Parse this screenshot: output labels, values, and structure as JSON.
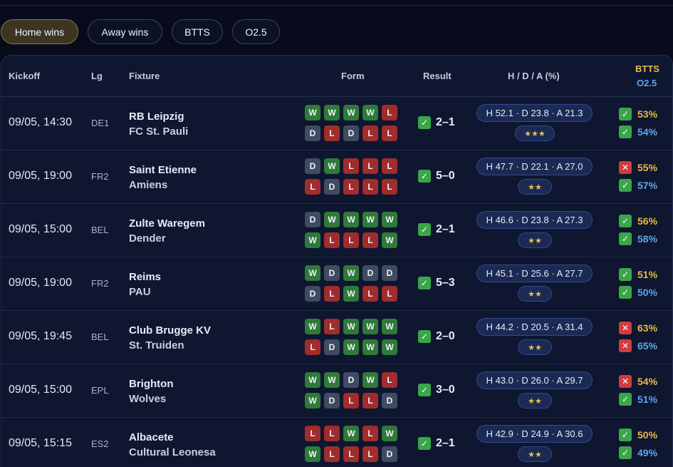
{
  "filters": [
    "Home wins",
    "Away wins",
    "BTTS",
    "O2.5"
  ],
  "header": {
    "kickoff": "Kickoff",
    "lg": "Lg",
    "fixture": "Fixture",
    "form": "Form",
    "result": "Result",
    "hda": "H / D / A (%)",
    "btts": "BTTS",
    "o25": "O2.5"
  },
  "colors": {
    "win": "#2f7a3a",
    "draw": "#404b62",
    "loss": "#a02c2c",
    "btts": "#e7b94a",
    "o25": "#5ea6ea",
    "check": "#3aa64a",
    "cross": "#d23c3c"
  },
  "icons": {
    "hit": "check-icon",
    "miss": "cross-icon",
    "confidence": "star-icon"
  },
  "rows": [
    {
      "kickoff": "09/05, 14:30",
      "league": "DE1",
      "home": "RB Leipzig",
      "away": "FC St. Pauli",
      "home_form": [
        "W",
        "W",
        "W",
        "W",
        "L"
      ],
      "away_form": [
        "D",
        "L",
        "D",
        "L",
        "L"
      ],
      "result": "2–1",
      "result_ok": true,
      "hda": "H 52.1 · D 23.8 · A 21.3",
      "stars": "★★★",
      "btts": "53%",
      "btts_ok": true,
      "o25": "54%",
      "o25_ok": true
    },
    {
      "kickoff": "09/05, 19:00",
      "league": "FR2",
      "home": "Saint Etienne",
      "away": "Amiens",
      "home_form": [
        "D",
        "W",
        "L",
        "L",
        "L"
      ],
      "away_form": [
        "L",
        "D",
        "L",
        "L",
        "L"
      ],
      "result": "5–0",
      "result_ok": true,
      "hda": "H 47.7 · D 22.1 · A 27.0",
      "stars": "★★",
      "btts": "55%",
      "btts_ok": false,
      "o25": "57%",
      "o25_ok": true
    },
    {
      "kickoff": "09/05, 15:00",
      "league": "BEL",
      "home": "Zulte Waregem",
      "away": "Dender",
      "home_form": [
        "D",
        "W",
        "W",
        "W",
        "W"
      ],
      "away_form": [
        "W",
        "L",
        "L",
        "L",
        "W"
      ],
      "result": "2–1",
      "result_ok": true,
      "hda": "H 46.6 · D 23.8 · A 27.3",
      "stars": "★★",
      "btts": "56%",
      "btts_ok": true,
      "o25": "58%",
      "o25_ok": true
    },
    {
      "kickoff": "09/05, 19:00",
      "league": "FR2",
      "home": "Reims",
      "away": "PAU",
      "home_form": [
        "W",
        "D",
        "W",
        "D",
        "D"
      ],
      "away_form": [
        "D",
        "L",
        "W",
        "L",
        "L"
      ],
      "result": "5–3",
      "result_ok": true,
      "hda": "H 45.1 · D 25.6 · A 27.7",
      "stars": "★★",
      "btts": "51%",
      "btts_ok": true,
      "o25": "50%",
      "o25_ok": true
    },
    {
      "kickoff": "09/05, 19:45",
      "league": "BEL",
      "home": "Club Brugge KV",
      "away": "St. Truiden",
      "home_form": [
        "W",
        "L",
        "W",
        "W",
        "W"
      ],
      "away_form": [
        "L",
        "D",
        "W",
        "W",
        "W"
      ],
      "result": "2–0",
      "result_ok": true,
      "hda": "H 44.2 · D 20.5 · A 31.4",
      "stars": "★★",
      "btts": "63%",
      "btts_ok": false,
      "o25": "65%",
      "o25_ok": false
    },
    {
      "kickoff": "09/05, 15:00",
      "league": "EPL",
      "home": "Brighton",
      "away": "Wolves",
      "home_form": [
        "W",
        "W",
        "D",
        "W",
        "L"
      ],
      "away_form": [
        "W",
        "D",
        "L",
        "L",
        "D"
      ],
      "result": "3–0",
      "result_ok": true,
      "hda": "H 43.0 · D 26.0 · A 29.7",
      "stars": "★★",
      "btts": "54%",
      "btts_ok": false,
      "o25": "51%",
      "o25_ok": true
    },
    {
      "kickoff": "09/05, 15:15",
      "league": "ES2",
      "home": "Albacete",
      "away": "Cultural Leonesa",
      "home_form": [
        "L",
        "L",
        "W",
        "L",
        "W"
      ],
      "away_form": [
        "W",
        "L",
        "L",
        "L",
        "D"
      ],
      "result": "2–1",
      "result_ok": true,
      "hda": "H 42.9 · D 24.9 · A 30.6",
      "stars": "★★",
      "btts": "50%",
      "btts_ok": true,
      "o25": "49%",
      "o25_ok": true
    }
  ]
}
